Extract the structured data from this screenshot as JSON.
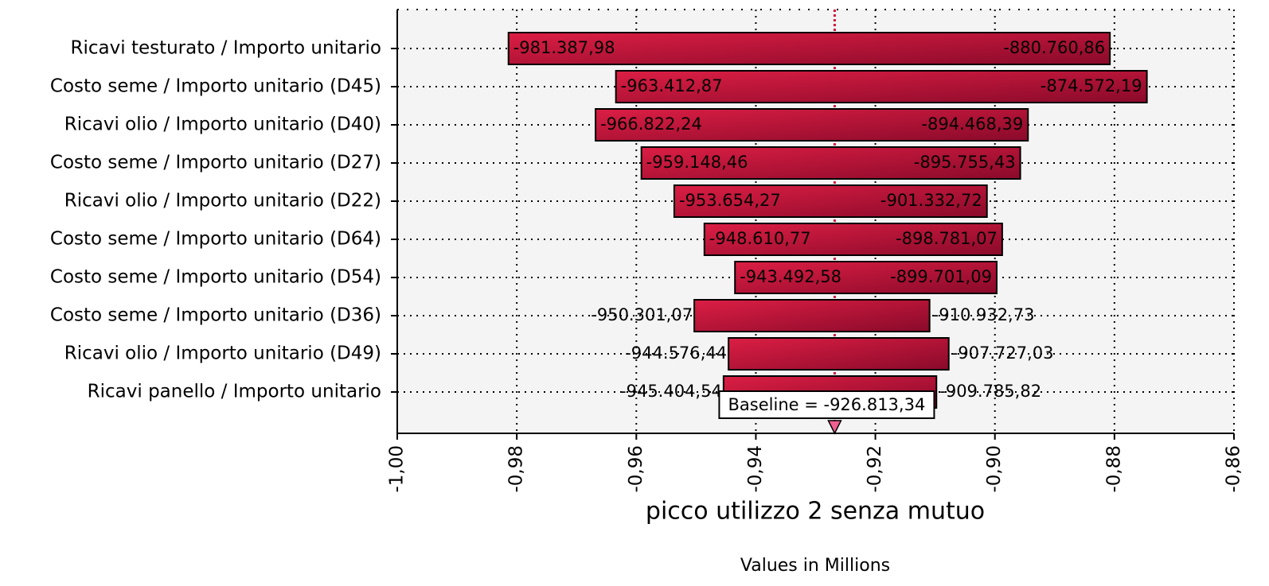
{
  "chart_data": {
    "type": "tornado",
    "x_label": "picco utilizzo 2 senza mutuo",
    "x_sublabel": "Values in Millions",
    "categories": [
      "Ricavi testurato / Importo unitario",
      "Costo seme / Importo unitario (D45)",
      "Ricavi olio / Importo unitario (D40)",
      "Costo seme / Importo unitario (D27)",
      "Ricavi olio / Importo unitario (D22)",
      "Costo seme / Importo unitario (D64)",
      "Costo seme / Importo unitario (D54)",
      "Costo seme / Importo unitario (D36)",
      "Ricavi olio / Importo unitario (D49)",
      "Ricavi panello / Importo unitario"
    ],
    "low": {
      "values": [
        -0.98138798,
        -0.96341287,
        -0.96682224,
        -0.95914846,
        -0.95365427,
        -0.94861077,
        -0.94349258,
        -0.95030107,
        -0.94457644,
        -0.94540454
      ],
      "value_labels": [
        "-981.387,98",
        "-963.412,87",
        "-966.822,24",
        "-959.148,46",
        "-953.654,27",
        "-948.610,77",
        "-943.492,58",
        "-950.301,07",
        "-944.576,44",
        "-945.404,54"
      ]
    },
    "high": {
      "values": [
        -0.88076086,
        -0.87457219,
        -0.89446839,
        -0.89575543,
        -0.90133272,
        -0.89878107,
        -0.89970109,
        -0.91093273,
        -0.90772703,
        -0.90978582
      ],
      "value_labels": [
        "-880.760,86",
        "-874.572,19",
        "-894.468,39",
        "-895.755,43",
        "-901.332,72",
        "-898.781,07",
        "-899.701,09",
        "-910.932,73",
        "-907.727,03",
        "-909.785,82"
      ]
    },
    "baseline": -0.92681334,
    "baseline_label": "Baseline = -926.813,34",
    "xlim": [
      -1.0,
      -0.86
    ],
    "xticks": [
      {
        "value": -1.0,
        "label": "-1,00"
      },
      {
        "value": -0.98,
        "label": "-0,98"
      },
      {
        "value": -0.96,
        "label": "-0,96"
      },
      {
        "value": -0.94,
        "label": "-0,94"
      },
      {
        "value": -0.92,
        "label": "-0,92"
      },
      {
        "value": -0.9,
        "label": "-0,90"
      },
      {
        "value": -0.88,
        "label": "-0,88"
      },
      {
        "value": -0.86,
        "label": "-0,86"
      }
    ],
    "colors": [
      "#dc1e44",
      "#8a0a2a"
    ],
    "grid": true
  }
}
